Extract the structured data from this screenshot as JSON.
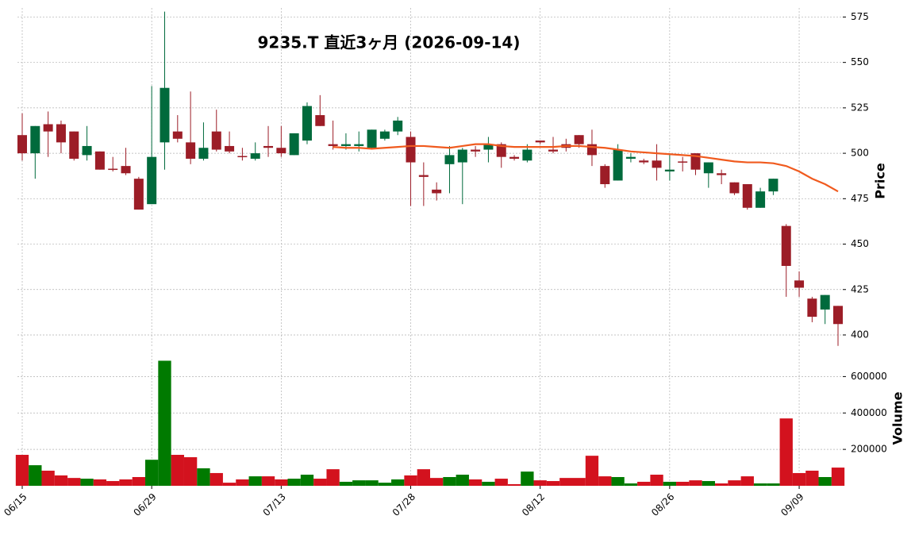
{
  "chart_data": {
    "type": "candlestick",
    "title": "9235.T  直近3ヶ月  (2026-09-14)",
    "categories": [
      "06/15",
      null,
      null,
      null,
      null,
      null,
      null,
      null,
      null,
      null,
      "06/29",
      null,
      null,
      null,
      null,
      null,
      null,
      null,
      null,
      null,
      "07/13",
      null,
      null,
      null,
      null,
      null,
      null,
      null,
      null,
      null,
      "07/28",
      null,
      null,
      null,
      null,
      null,
      null,
      null,
      null,
      null,
      "08/12",
      null,
      null,
      null,
      null,
      null,
      null,
      null,
      null,
      null,
      "08/26",
      null,
      null,
      null,
      null,
      null,
      null,
      null,
      null,
      null,
      "09/09",
      null,
      null,
      null
    ],
    "open": [
      510,
      500,
      516,
      516,
      512,
      499,
      501,
      491.5,
      493,
      486,
      472,
      506,
      512,
      506,
      497,
      512,
      504,
      498.5,
      497,
      504,
      503,
      499,
      507,
      521,
      505,
      504,
      504,
      503,
      508,
      512,
      509,
      488,
      480,
      494,
      495,
      502,
      502,
      505,
      498,
      496,
      507,
      502,
      505,
      510,
      505,
      493,
      485,
      497,
      496,
      496,
      490,
      495.5,
      500,
      489,
      489,
      484,
      483,
      470,
      479,
      460,
      430,
      420,
      414,
      416
    ],
    "high": [
      522,
      515,
      523,
      518,
      512,
      515,
      501,
      498,
      503,
      487,
      537,
      578,
      521,
      534,
      517,
      524,
      512,
      503,
      506,
      515,
      515,
      511,
      528,
      532,
      518,
      511,
      512,
      513,
      513,
      520,
      512,
      495,
      484,
      504,
      503,
      504,
      509,
      506,
      499,
      505,
      507,
      509,
      508,
      510,
      513,
      494,
      505,
      500,
      497,
      505,
      500,
      498,
      500,
      495,
      491,
      484,
      483,
      481,
      486,
      461,
      435,
      421,
      422,
      416
    ],
    "low": [
      496,
      486,
      498,
      500,
      496,
      496,
      491,
      490,
      488,
      469,
      472,
      491,
      506,
      494,
      496,
      501,
      500,
      496,
      496,
      498,
      498,
      499,
      505,
      515,
      502,
      502,
      501,
      502,
      507,
      510,
      471,
      471,
      474,
      478,
      472,
      498,
      495,
      492,
      496,
      495,
      505,
      500,
      501,
      503,
      493,
      481,
      485,
      495,
      494,
      485,
      485,
      490,
      488,
      481,
      483,
      477,
      469,
      470,
      477,
      421,
      421,
      407,
      406,
      394
    ],
    "close": [
      500,
      515,
      512,
      506,
      497,
      504,
      491,
      491,
      489,
      469,
      498,
      536,
      508,
      497,
      503,
      502,
      501,
      498,
      500,
      503,
      500,
      511,
      526,
      515,
      504,
      505,
      505,
      513,
      512,
      518,
      495,
      487,
      478,
      499,
      502,
      501,
      505,
      498,
      497,
      502,
      506,
      501,
      503,
      505,
      499,
      483,
      502,
      498,
      495,
      492,
      491,
      495,
      491,
      495,
      488,
      478,
      470,
      479,
      486,
      438,
      426,
      410,
      422,
      406
    ],
    "up_color": "#006a3c",
    "down_color": "#9c1d27",
    "moving_average": {
      "color": "#f05a1e",
      "values": [
        null,
        null,
        null,
        null,
        null,
        null,
        null,
        null,
        null,
        null,
        null,
        null,
        null,
        null,
        null,
        null,
        null,
        null,
        null,
        null,
        null,
        null,
        null,
        null,
        503.5,
        503,
        503,
        502.5,
        503,
        503.5,
        504,
        504,
        503.5,
        503,
        504,
        505,
        505,
        504,
        503.5,
        503.5,
        503.5,
        503.5,
        504,
        504,
        503.5,
        503,
        502,
        501,
        500.5,
        500,
        499.5,
        499,
        498.5,
        497.5,
        496.5,
        495.5,
        495,
        495,
        494.5,
        493,
        490,
        486,
        483,
        479
      ]
    },
    "ylabel": "Price",
    "ylim": [
      393,
      580
    ],
    "yticks": [
      400,
      425,
      450,
      475,
      500,
      525,
      550,
      575
    ],
    "grid": true,
    "volume": {
      "ylabel": "Volume",
      "up_color": "#007a00",
      "down_color": "#d3121e",
      "ylim": [
        0,
        750000
      ],
      "yticks": [
        200000,
        400000,
        600000
      ],
      "values": [
        170000,
        113000,
        83000,
        57000,
        43000,
        39000,
        35000,
        26000,
        35000,
        48000,
        143000,
        687000,
        170000,
        157000,
        96000,
        70000,
        17000,
        35000,
        52000,
        52000,
        35000,
        39000,
        61000,
        39000,
        91000,
        22000,
        30000,
        30000,
        17000,
        35000,
        57000,
        91000,
        43000,
        48000,
        61000,
        35000,
        22000,
        39000,
        9000,
        78000,
        30000,
        26000,
        43000,
        43000,
        165000,
        52000,
        48000,
        13000,
        22000,
        61000,
        22000,
        22000,
        30000,
        26000,
        13000,
        30000,
        52000,
        13000,
        13000,
        370000,
        70000,
        83000,
        48000,
        100000
      ]
    }
  }
}
